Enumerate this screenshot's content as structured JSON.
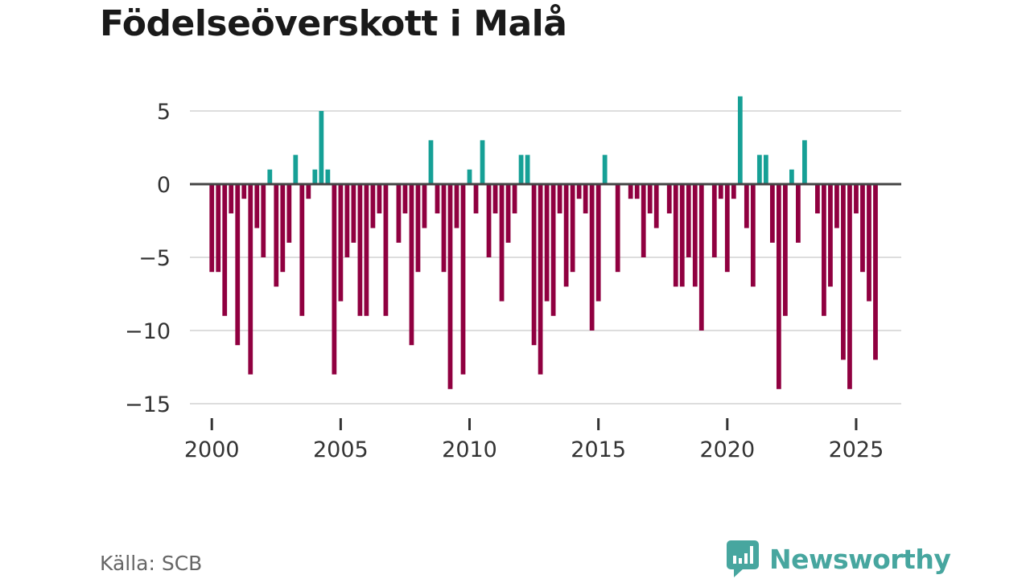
{
  "title": "Födelseöverskott i Malå",
  "source": "Källa: SCB",
  "brand": {
    "name": "Newsworthy",
    "logo_icon": "newsworthy-bar-chart-logo-icon"
  },
  "colors": {
    "positive": "#16a096",
    "negative": "#900040",
    "zero_line": "#444444",
    "grid": "#dddddd"
  },
  "chart_data": {
    "type": "bar",
    "title": "Födelseöverskott i Malå",
    "xlabel": "",
    "ylabel": "",
    "ylim": [
      -15,
      7
    ],
    "xlim": [
      1999.15,
      2026.75
    ],
    "y_ticks": [
      5,
      0,
      -5,
      -10,
      -15
    ],
    "x_ticks": [
      2000,
      2005,
      2010,
      2015,
      2020,
      2025
    ],
    "grid": true,
    "frequency": "quarterly",
    "start": 2000,
    "values": [
      -6,
      -6,
      -9,
      -2,
      -11,
      -1,
      -13,
      -3,
      -5,
      1,
      -7,
      -6,
      -4,
      2,
      -9,
      -1,
      1,
      5,
      1,
      -13,
      -8,
      -5,
      -4,
      -9,
      -9,
      -3,
      -2,
      -9,
      0,
      -4,
      -2,
      -11,
      -6,
      -3,
      3,
      -2,
      -6,
      -14,
      -3,
      -13,
      1,
      -2,
      3,
      -5,
      -2,
      -8,
      -4,
      -2,
      2,
      2,
      -11,
      -13,
      -8,
      -9,
      -2,
      -7,
      -6,
      -1,
      -2,
      -10,
      -8,
      2,
      0,
      -6,
      0,
      -1,
      -1,
      -5,
      -2,
      -3,
      0,
      -2,
      -7,
      -7,
      -5,
      -7,
      -10,
      0,
      -5,
      -1,
      -6,
      -1,
      6,
      -3,
      -7,
      2,
      2,
      -4,
      -14,
      -9,
      1,
      -4,
      3,
      0,
      -2,
      -9,
      -7,
      -3,
      -12,
      -14,
      -2,
      -6,
      -8,
      -12
    ]
  }
}
